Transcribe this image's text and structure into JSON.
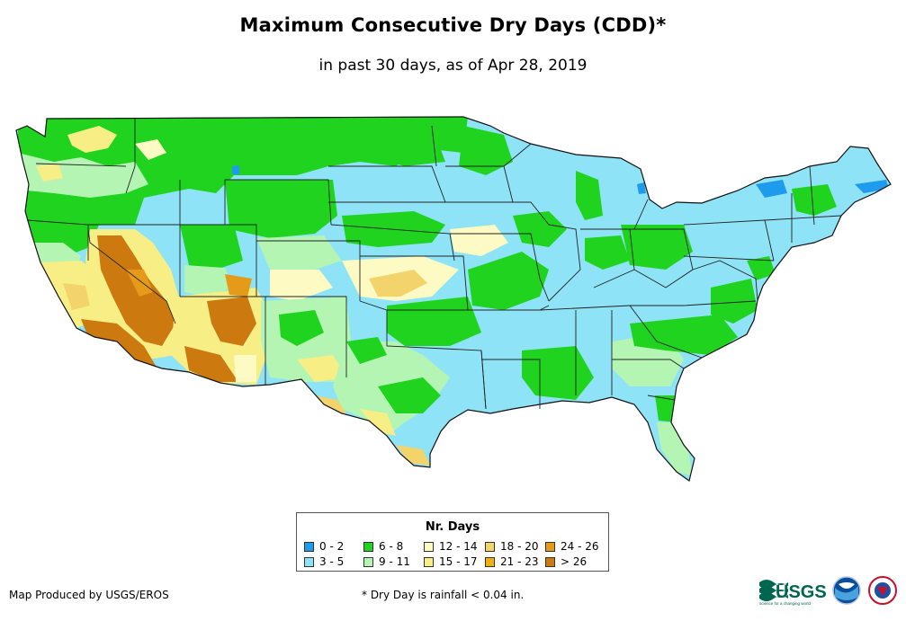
{
  "title": "Maximum Consecutive Dry Days (CDD)*",
  "subtitle": "in past 30 days, as of Apr 28, 2019",
  "legend": {
    "title": "Nr. Days",
    "items": [
      {
        "label": "0 - 2",
        "color": "#1e9bec"
      },
      {
        "label": "3 - 5",
        "color": "#8ee3f6"
      },
      {
        "label": "6 - 8",
        "color": "#1fd31f"
      },
      {
        "label": "9 - 11",
        "color": "#b4f5b4"
      },
      {
        "label": "12 - 14",
        "color": "#fdfbc3"
      },
      {
        "label": "15 - 17",
        "color": "#f7ee86"
      },
      {
        "label": "18 - 20",
        "color": "#f3d36b"
      },
      {
        "label": "21 - 23",
        "color": "#f0b10c"
      },
      {
        "label": "24 - 26",
        "color": "#e59a1a"
      },
      {
        "label": "> 26",
        "color": "#cc7a10"
      }
    ]
  },
  "credit": "Map Produced by USGS/EROS",
  "footnote": "* Dry Day is rainfall < 0.04 in.",
  "logos": {
    "usgs_text": "USGS",
    "usgs_tagline": "science for a changing world"
  }
}
